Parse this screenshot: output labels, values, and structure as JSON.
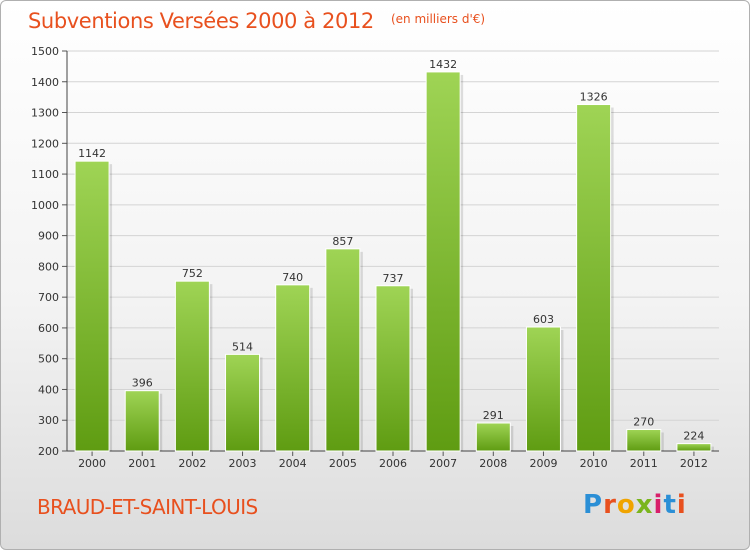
{
  "title": "Subventions Versées 2000 à 2012",
  "subtitle": "(en milliers d'€)",
  "commune": "BRAUD-ET-SAINT-LOUIS",
  "logo": {
    "text": "Proxiti",
    "letter_colors": [
      "#2b8fd6",
      "#e8501e",
      "#f0a400",
      "#7ab51d",
      "#d81f6a",
      "#2b8fd6",
      "#e8501e"
    ]
  },
  "chart_data": {
    "type": "bar",
    "title": "Subventions Versées 2000 à 2012",
    "subtitle": "(en milliers d'€)",
    "categories": [
      "2000",
      "2001",
      "2002",
      "2003",
      "2004",
      "2005",
      "2006",
      "2007",
      "2008",
      "2009",
      "2010",
      "2011",
      "2012"
    ],
    "values": [
      1142,
      396,
      752,
      514,
      740,
      857,
      737,
      1432,
      291,
      603,
      1326,
      270,
      224
    ],
    "ylim": [
      200,
      1500
    ],
    "yticks": [
      200,
      300,
      400,
      500,
      600,
      700,
      800,
      900,
      1000,
      1100,
      1200,
      1300,
      1400,
      1500
    ],
    "grid": true,
    "bar_color_top": "#9fd455",
    "bar_color_bottom": "#5f9c12",
    "title_color": "#e8501e"
  }
}
